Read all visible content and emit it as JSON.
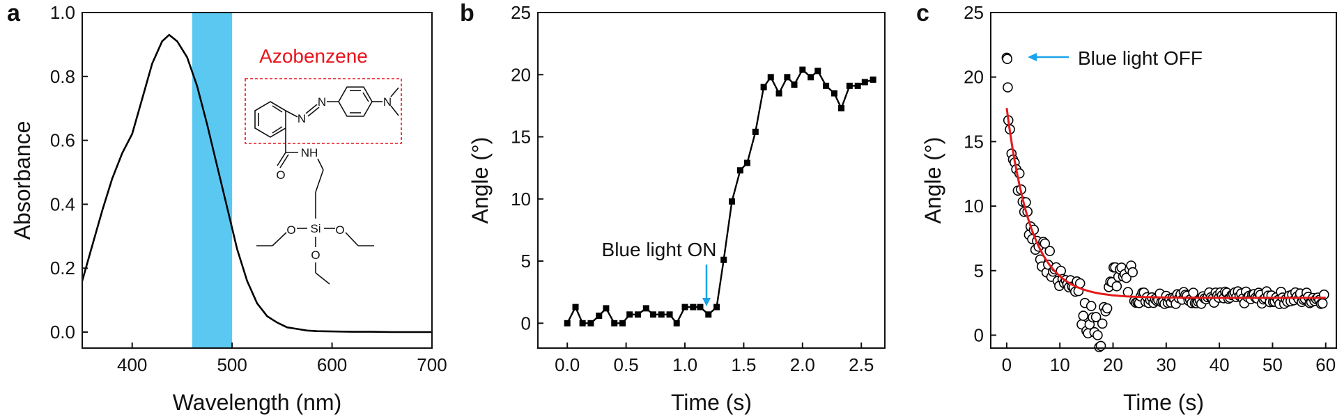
{
  "panels": [
    {
      "label": "a"
    },
    {
      "label": "b"
    },
    {
      "label": "c"
    }
  ],
  "structure": {
    "name": "Azobenzene",
    "name_color": "#e8141d",
    "atoms": {
      "N_azo1": "N",
      "N_azo2": "N",
      "N_amine": "N",
      "NH": "NH",
      "O_carbonyl": "O",
      "Si": "Si",
      "O1": "O",
      "O2": "O",
      "O3": "O"
    }
  },
  "annotations": {
    "blue_on": "Blue light ON",
    "blue_off": "Blue light OFF",
    "arrow_color": "#1aa3e8"
  },
  "colors": {
    "band": "#5bc8f2",
    "fit": "#e31a1c",
    "data": "#000000"
  },
  "chart_data": [
    {
      "type": "line",
      "xlabel": "Wavelength (nm)",
      "ylabel": "Absorbance",
      "xlim": [
        350,
        700
      ],
      "ylim": [
        -0.05,
        1.0
      ],
      "xticks": [
        400,
        500,
        600,
        700
      ],
      "yticks": [
        0.0,
        0.2,
        0.4,
        0.6,
        0.8,
        1.0
      ],
      "ytick_labels": [
        "0.0",
        "0.2",
        "0.4",
        "0.6",
        "0.8",
        "1.0"
      ],
      "shaded_band": [
        460,
        500
      ],
      "series": [
        {
          "x": [
            350,
            360,
            370,
            380,
            390,
            400,
            410,
            420,
            430,
            437,
            445,
            455,
            465,
            475,
            485,
            495,
            505,
            515,
            525,
            535,
            545,
            555,
            565,
            575,
            585,
            600,
            620,
            640,
            660,
            680,
            700
          ],
          "values": [
            0.16,
            0.27,
            0.38,
            0.48,
            0.56,
            0.62,
            0.73,
            0.84,
            0.91,
            0.93,
            0.91,
            0.86,
            0.77,
            0.65,
            0.52,
            0.39,
            0.26,
            0.16,
            0.09,
            0.05,
            0.03,
            0.015,
            0.01,
            0.005,
            0.003,
            0.002,
            0.001,
            0.001,
            0.0,
            0.0,
            0.0
          ]
        }
      ]
    },
    {
      "type": "line",
      "xlabel": "Time (s)",
      "ylabel": "Angle (°)",
      "xlim": [
        -0.25,
        2.7
      ],
      "ylim": [
        -2,
        25
      ],
      "xticks": [
        0.0,
        0.5,
        1.0,
        1.5,
        2.0,
        2.5
      ],
      "xtick_labels": [
        "0.0",
        "0.5",
        "1.0",
        "1.5",
        "2.0",
        "2.5"
      ],
      "yticks": [
        0,
        5,
        10,
        15,
        20,
        25
      ],
      "series": [
        {
          "x": [
            0,
            0.07,
            0.13,
            0.2,
            0.27,
            0.33,
            0.4,
            0.47,
            0.53,
            0.6,
            0.67,
            0.73,
            0.8,
            0.87,
            0.93,
            1.0,
            1.07,
            1.13,
            1.2,
            1.27,
            1.33,
            1.4,
            1.47,
            1.53,
            1.6,
            1.67,
            1.73,
            1.8,
            1.87,
            1.93,
            2.0,
            2.07,
            2.13,
            2.2,
            2.27,
            2.33,
            2.4,
            2.47,
            2.53,
            2.6
          ],
          "values": [
            0,
            1.3,
            0,
            0,
            0.6,
            1.2,
            0,
            0,
            0.7,
            0.7,
            1.2,
            0.7,
            0.7,
            0.7,
            0,
            1.3,
            1.3,
            1.3,
            0.7,
            1.3,
            5.1,
            9.8,
            12.3,
            12.9,
            15.4,
            19,
            19.8,
            18.5,
            19.8,
            19.2,
            20.4,
            19.8,
            20.3,
            19.1,
            18.5,
            17.3,
            19.1,
            19.1,
            19.4,
            19.6
          ]
        }
      ]
    },
    {
      "type": "scatter",
      "xlabel": "Time (s)",
      "ylabel": "Angle (°)",
      "xlim": [
        -3,
        62
      ],
      "ylim": [
        -1,
        25
      ],
      "xticks": [
        0,
        10,
        20,
        30,
        40,
        50,
        60
      ],
      "yticks": [
        0,
        5,
        10,
        15,
        20,
        25
      ],
      "fit": {
        "type": "exponential decay",
        "y0": 17.6,
        "plateau": 2.9,
        "tau": 4.6
      }
    }
  ]
}
